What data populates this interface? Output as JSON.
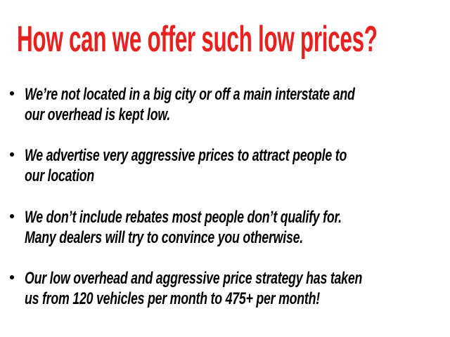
{
  "title": "How can we offer such low prices?",
  "colors": {
    "title": "#e8211f",
    "text": "#000000",
    "background": "#ffffff"
  },
  "bullets": [
    {
      "lines": [
        "We’re not located in a big city or off a main interstate and",
        "our overhead is kept low."
      ]
    },
    {
      "lines": [
        "We advertise very aggressive prices to attract people to",
        "our location"
      ]
    },
    {
      "lines": [
        "We don’t include rebates most people don’t qualify for.",
        "Many dealers will try to convince you otherwise."
      ]
    },
    {
      "lines": [
        "Our low overhead and aggressive price strategy has taken",
        "us from 120 vehicles per month to 475+ per month!"
      ]
    }
  ]
}
